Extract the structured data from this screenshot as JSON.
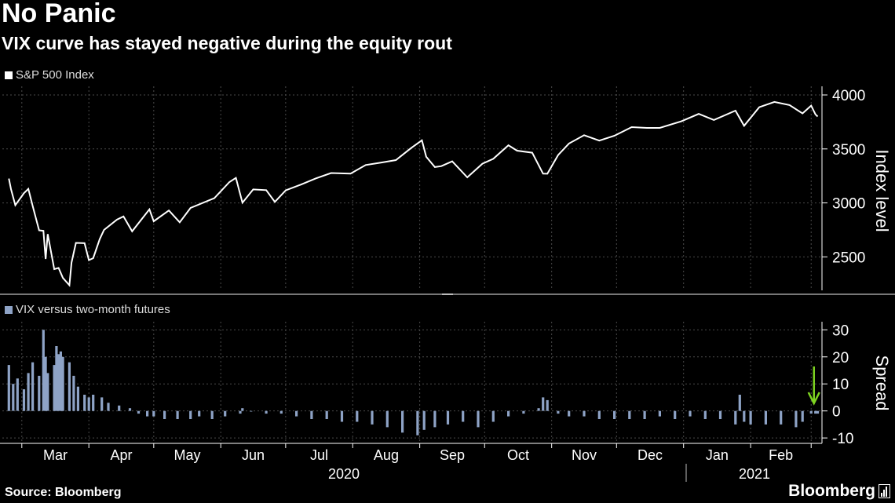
{
  "title": "No Panic",
  "subtitle": "VIX curve has stayed negative during the equity rout",
  "source": "Source: Bloomberg",
  "brand": "Bloomberg",
  "colors": {
    "background": "#000000",
    "line": "#ffffff",
    "bars": "#8ea3c6",
    "arrow": "#7ed321",
    "grid": "#4a4a4a"
  },
  "chart_data": [
    {
      "type": "line",
      "legend": "S&P 500 Index",
      "ylabel": "Index level",
      "yticks": [
        2500,
        3000,
        3500,
        4000
      ],
      "ylim": [
        2190,
        4080
      ],
      "grid": true,
      "legend_position": "top-left",
      "x": [
        "2020-02-24",
        "2020-02-25",
        "2020-02-27",
        "2020-03-02",
        "2020-03-04",
        "2020-03-06",
        "2020-03-09",
        "2020-03-11",
        "2020-03-12",
        "2020-03-13",
        "2020-03-16",
        "2020-03-18",
        "2020-03-20",
        "2020-03-23",
        "2020-03-24",
        "2020-03-26",
        "2020-03-30",
        "2020-04-01",
        "2020-04-03",
        "2020-04-06",
        "2020-04-08",
        "2020-04-14",
        "2020-04-17",
        "2020-04-21",
        "2020-04-29",
        "2020-05-01",
        "2020-05-08",
        "2020-05-13",
        "2020-05-18",
        "2020-05-29",
        "2020-06-05",
        "2020-06-08",
        "2020-06-11",
        "2020-06-16",
        "2020-06-22",
        "2020-06-26",
        "2020-07-01",
        "2020-07-08",
        "2020-07-15",
        "2020-07-22",
        "2020-07-31",
        "2020-08-07",
        "2020-08-14",
        "2020-08-21",
        "2020-08-28",
        "2020-09-02",
        "2020-09-04",
        "2020-09-08",
        "2020-09-11",
        "2020-09-16",
        "2020-09-23",
        "2020-09-30",
        "2020-10-05",
        "2020-10-12",
        "2020-10-16",
        "2020-10-23",
        "2020-10-28",
        "2020-10-30",
        "2020-11-04",
        "2020-11-09",
        "2020-11-16",
        "2020-11-23",
        "2020-11-30",
        "2020-12-08",
        "2020-12-15",
        "2020-12-21",
        "2020-12-31",
        "2021-01-08",
        "2021-01-15",
        "2021-01-25",
        "2021-01-29",
        "2021-02-05",
        "2021-02-12",
        "2021-02-19",
        "2021-02-25",
        "2021-03-01",
        "2021-03-03",
        "2021-03-04"
      ],
      "values": [
        3225,
        3128,
        2979,
        3090,
        3130,
        2972,
        2746,
        2741,
        2480,
        2711,
        2386,
        2398,
        2305,
        2237,
        2447,
        2630,
        2627,
        2470,
        2488,
        2664,
        2750,
        2846,
        2875,
        2737,
        2940,
        2830,
        2930,
        2820,
        2953,
        3044,
        3193,
        3232,
        3002,
        3125,
        3118,
        3009,
        3116,
        3169,
        3227,
        3277,
        3271,
        3351,
        3373,
        3397,
        3508,
        3580,
        3427,
        3332,
        3341,
        3385,
        3237,
        3363,
        3408,
        3534,
        3484,
        3465,
        3271,
        3270,
        3443,
        3550,
        3627,
        3577,
        3622,
        3702,
        3695,
        3695,
        3756,
        3825,
        3768,
        3855,
        3714,
        3887,
        3935,
        3906,
        3829,
        3901,
        3820,
        3800
      ]
    },
    {
      "type": "bar",
      "legend": "VIX versus two-month futures",
      "ylabel": "Spread",
      "yticks": [
        -10,
        0,
        10,
        20,
        30
      ],
      "ylim": [
        -12,
        33
      ],
      "grid": true,
      "legend_position": "top-left",
      "x": [
        "2020-02-24",
        "2020-02-26",
        "2020-02-28",
        "2020-03-02",
        "2020-03-04",
        "2020-03-06",
        "2020-03-09",
        "2020-03-11",
        "2020-03-12",
        "2020-03-13",
        "2020-03-16",
        "2020-03-17",
        "2020-03-18",
        "2020-03-19",
        "2020-03-20",
        "2020-03-23",
        "2020-03-25",
        "2020-03-27",
        "2020-03-30",
        "2020-04-01",
        "2020-04-03",
        "2020-04-07",
        "2020-04-10",
        "2020-04-15",
        "2020-04-20",
        "2020-04-24",
        "2020-04-28",
        "2020-05-01",
        "2020-05-06",
        "2020-05-12",
        "2020-05-18",
        "2020-05-22",
        "2020-05-28",
        "2020-06-03",
        "2020-06-10",
        "2020-06-11",
        "2020-06-15",
        "2020-06-22",
        "2020-06-29",
        "2020-07-06",
        "2020-07-13",
        "2020-07-20",
        "2020-07-27",
        "2020-08-03",
        "2020-08-10",
        "2020-08-17",
        "2020-08-24",
        "2020-08-31",
        "2020-09-03",
        "2020-09-08",
        "2020-09-14",
        "2020-09-21",
        "2020-09-28",
        "2020-10-05",
        "2020-10-12",
        "2020-10-19",
        "2020-10-26",
        "2020-10-28",
        "2020-10-30",
        "2020-11-04",
        "2020-11-09",
        "2020-11-16",
        "2020-11-23",
        "2020-11-30",
        "2020-12-07",
        "2020-12-14",
        "2020-12-21",
        "2020-12-28",
        "2021-01-04",
        "2021-01-11",
        "2021-01-18",
        "2021-01-25",
        "2021-01-27",
        "2021-01-29",
        "2021-02-01",
        "2021-02-08",
        "2021-02-15",
        "2021-02-22",
        "2021-02-25",
        "2021-03-01",
        "2021-03-03",
        "2021-03-04"
      ],
      "values": [
        17,
        10,
        12,
        8,
        14,
        18,
        13,
        30,
        20,
        14,
        17,
        24,
        21,
        22,
        20,
        18,
        13,
        9,
        6,
        5,
        6,
        5,
        3,
        2,
        1,
        -1,
        -2,
        -2,
        -3,
        -3,
        -3,
        -2,
        -3,
        -2,
        -1,
        1,
        0,
        -1,
        -1,
        -2,
        -3,
        -3,
        -4,
        -4,
        -5,
        -6,
        -8,
        -9,
        -7,
        -6,
        -5,
        -4,
        -6,
        -4,
        -2,
        -1,
        1,
        5,
        4,
        -1,
        -2,
        -2,
        -3,
        -3,
        -3,
        -3,
        -2,
        -3,
        -2,
        -3,
        -3,
        -5,
        6,
        -4,
        -5,
        -5,
        -5,
        -6,
        -4,
        -1,
        -1,
        -1
      ]
    }
  ],
  "x_axis": {
    "months": [
      "Mar",
      "Apr",
      "May",
      "Jun",
      "Jul",
      "Aug",
      "Sep",
      "Oct",
      "Nov",
      "Dec",
      "Jan",
      "Feb"
    ],
    "years": [
      "2020",
      "2021"
    ]
  },
  "annotation": {
    "type": "arrow",
    "color": "#7ed321",
    "points_to": "2021-03-03"
  }
}
